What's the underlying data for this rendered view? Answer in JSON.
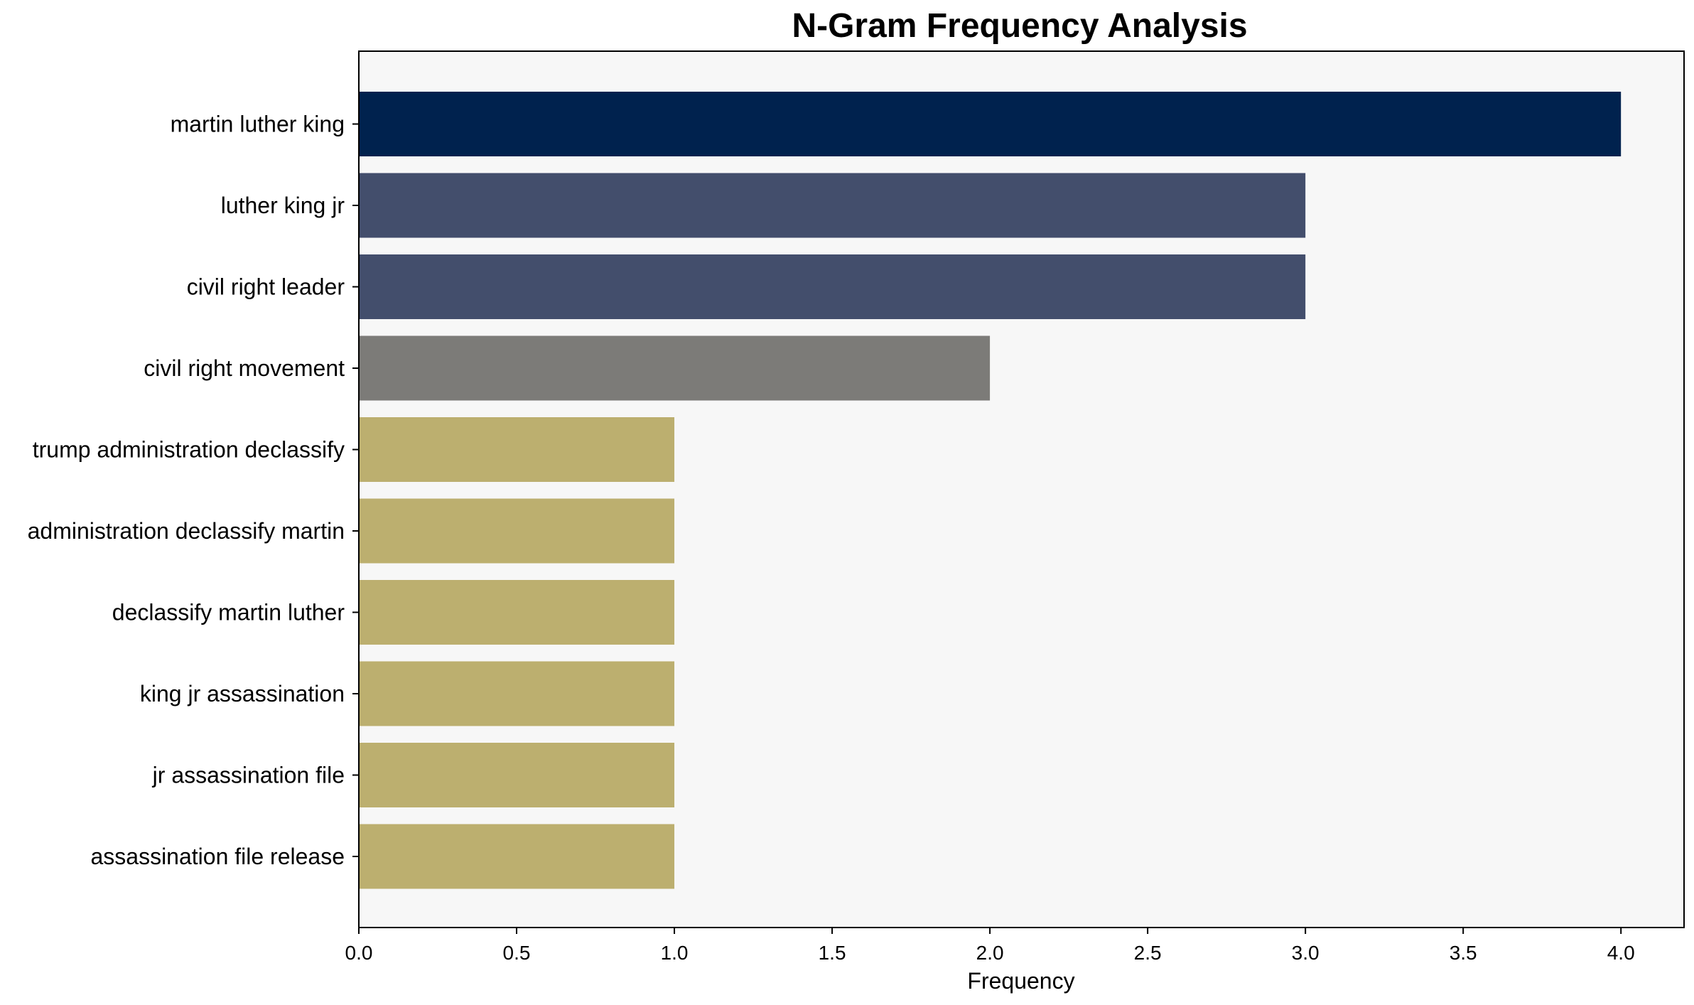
{
  "chart_data": {
    "type": "bar",
    "orientation": "horizontal",
    "title": "N-Gram Frequency Analysis",
    "xlabel": "Frequency",
    "ylabel": "",
    "categories": [
      "martin luther king",
      "luther king jr",
      "civil right leader",
      "civil right movement",
      "trump administration declassify",
      "administration declassify martin",
      "declassify martin luther",
      "king jr assassination",
      "jr assassination file",
      "assassination file release"
    ],
    "values": [
      4,
      3,
      3,
      2,
      1,
      1,
      1,
      1,
      1,
      1
    ],
    "bar_colors": [
      "#00224e",
      "#434e6c",
      "#434e6c",
      "#7c7b78",
      "#bcaf6f",
      "#bcaf6f",
      "#bcaf6f",
      "#bcaf6f",
      "#bcaf6f",
      "#bcaf6f"
    ],
    "xlim": [
      0,
      4.2
    ],
    "xticks": [
      "0.0",
      "0.5",
      "1.0",
      "1.5",
      "2.0",
      "2.5",
      "3.0",
      "3.5",
      "4.0"
    ],
    "grid": false,
    "legend": "none",
    "plot_background": "#f7f7f7"
  }
}
